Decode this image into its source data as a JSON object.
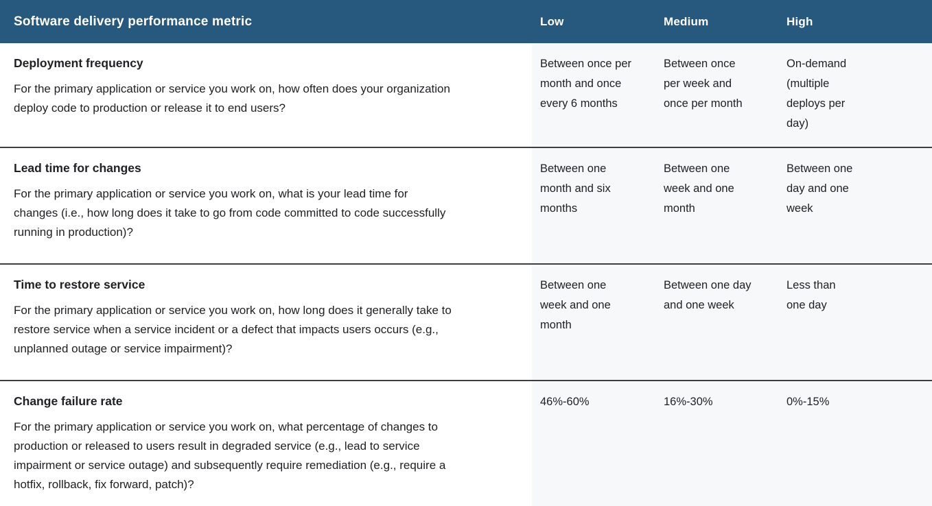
{
  "table": {
    "header": {
      "metric_label": "Software delivery performance metric",
      "columns": [
        "Low",
        "Medium",
        "High"
      ]
    },
    "rows": [
      {
        "title": "Deployment frequency",
        "description": "For the primary application or service you work on, how often does your organization deploy code to production or release it to end users?",
        "low": [
          "Between once per",
          "month and once",
          "every 6 months"
        ],
        "medium": [
          "Between once",
          "per week and",
          "once per month"
        ],
        "high": [
          "On-demand",
          "(multiple",
          "deploys per",
          "day)"
        ]
      },
      {
        "title": "Lead time for changes",
        "description": "For the primary application or service you work on, what is your lead time for changes (i.e., how long does it take to go from code committed to code successfully running in production)?",
        "low": [
          "Between one",
          "month and six",
          "months"
        ],
        "medium": [
          "Between one",
          "week and one",
          "month"
        ],
        "high": [
          "Between one",
          "day and one",
          "week"
        ]
      },
      {
        "title": "Time to restore service",
        "description": "For the primary application or service you work on, how long does it generally take to restore service when a service incident or a defect that impacts users occurs (e.g., unplanned outage or service impairment)?",
        "low": [
          "Between one",
          "week and one",
          "month"
        ],
        "medium": [
          "Between one day",
          "and one week"
        ],
        "high": [
          "Less than",
          "one day"
        ]
      },
      {
        "title": "Change failure rate",
        "description": "For the primary application or service you work on, what percentage of changes to production or released to users result in degraded service (e.g., lead to service impairment or service outage) and subsequently require remediation (e.g., require a hotfix, rollback, fix forward, patch)?",
        "low": [
          "46%-60%"
        ],
        "medium": [
          "16%-30%"
        ],
        "high": [
          "0%-15%"
        ]
      }
    ],
    "colors": {
      "header_background": "#27587e",
      "header_text": "#ffffff",
      "values_background": "#f7f8fa",
      "body_text": "#202124",
      "row_divider": "#3e3e40"
    }
  }
}
